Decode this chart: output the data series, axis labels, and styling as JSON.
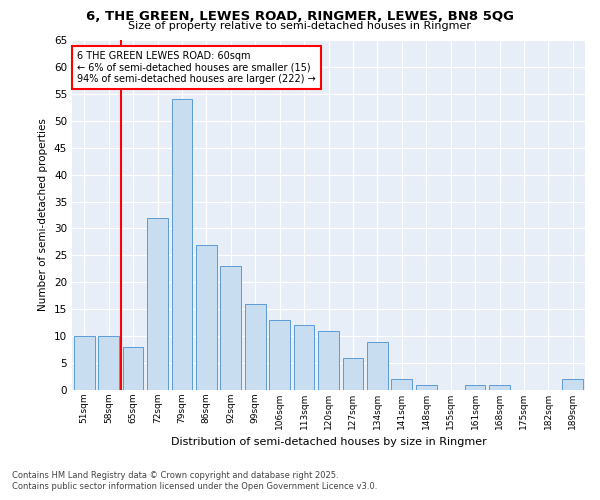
{
  "title_line1": "6, THE GREEN, LEWES ROAD, RINGMER, LEWES, BN8 5QG",
  "title_line2": "Size of property relative to semi-detached houses in Ringmer",
  "xlabel": "Distribution of semi-detached houses by size in Ringmer",
  "ylabel": "Number of semi-detached properties",
  "categories": [
    "51sqm",
    "58sqm",
    "65sqm",
    "72sqm",
    "79sqm",
    "86sqm",
    "92sqm",
    "99sqm",
    "106sqm",
    "113sqm",
    "120sqm",
    "127sqm",
    "134sqm",
    "141sqm",
    "148sqm",
    "155sqm",
    "161sqm",
    "168sqm",
    "175sqm",
    "182sqm",
    "189sqm"
  ],
  "values": [
    10,
    10,
    8,
    32,
    54,
    27,
    23,
    16,
    13,
    12,
    11,
    6,
    9,
    2,
    1,
    0,
    1,
    1,
    0,
    0,
    2
  ],
  "bar_color": "#c9ddf0",
  "bar_edge_color": "#5b9bd5",
  "highlight_color": "#ff0000",
  "annotation_title": "6 THE GREEN LEWES ROAD: 60sqm",
  "annotation_line1": "← 6% of semi-detached houses are smaller (15)",
  "annotation_line2": "94% of semi-detached houses are larger (222) →",
  "ylim": [
    0,
    65
  ],
  "footer_line1": "Contains HM Land Registry data © Crown copyright and database right 2025.",
  "footer_line2": "Contains public sector information licensed under the Open Government Licence v3.0.",
  "background_color": "#e8eef7",
  "grid_color": "#ffffff",
  "fig_bg": "#ffffff"
}
